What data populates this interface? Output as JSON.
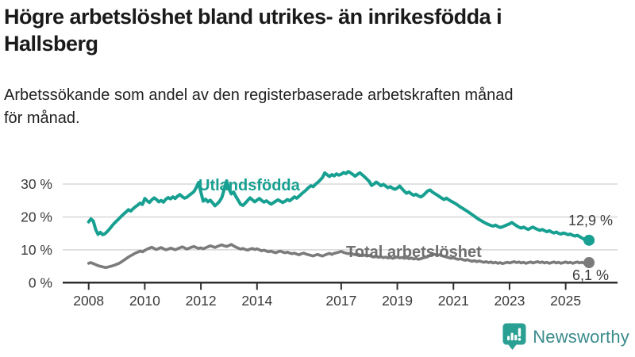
{
  "header": {
    "title_line1": "Högre arbetslöshet bland utrikes- än inrikesfödda i",
    "title_line2": "Hallsberg",
    "subtitle_line1": "Arbetssökande som andel av den registerbaserade arbetskraften månad",
    "subtitle_line2": "för månad."
  },
  "chart_data": {
    "type": "line",
    "title": "Högre arbetslöshet bland utrikes- än inrikesfödda i Hallsberg",
    "subtitle": "Arbetssökande som andel av den registerbaserade arbetskraften månad för månad.",
    "x_start_year": 2008,
    "points_per_year": 12,
    "ylim": [
      0,
      35
    ],
    "grid": "horizontal",
    "legend_position": "inline-labels",
    "y_ticks": {
      "values": [
        0,
        10,
        20,
        30
      ],
      "labels": [
        "0 %",
        "10 %",
        "20 %",
        "30 %"
      ]
    },
    "x_ticks": {
      "years": [
        2008,
        2010,
        2012,
        2014,
        2017,
        2019,
        2021,
        2023,
        2025
      ],
      "labels": [
        "2008",
        "2010",
        "2012",
        "2014",
        "2017",
        "2019",
        "2021",
        "2023",
        "2025"
      ]
    },
    "series": [
      {
        "name": "Utlandsfödda",
        "color": "#17a091",
        "end_label": "12,9 %",
        "end_value": 12.9,
        "values": [
          18.5,
          19.4,
          18.7,
          16.2,
          14.7,
          15.3,
          14.6,
          14.9,
          15.6,
          16.4,
          17.3,
          18.1,
          18.8,
          19.5,
          20.2,
          20.9,
          21.5,
          22.2,
          21.8,
          22.5,
          23.1,
          23.6,
          24.2,
          23.8,
          25.6,
          24.9,
          24.4,
          25.2,
          25.8,
          25.3,
          24.6,
          25.0,
          24.5,
          25.4,
          25.9,
          25.5,
          26.1,
          25.6,
          26.3,
          26.8,
          26.2,
          25.7,
          26.0,
          26.6,
          27.1,
          27.7,
          28.9,
          30.5,
          27.5,
          24.8,
          25.4,
          24.6,
          25.1,
          24.3,
          23.4,
          24.0,
          24.8,
          26.0,
          28.5,
          31.0,
          28.5,
          27.0,
          27.6,
          26.2,
          25.0,
          23.8,
          23.5,
          24.2,
          25.0,
          25.8,
          25.2,
          24.6,
          25.1,
          25.6,
          25.0,
          24.5,
          24.9,
          24.4,
          23.9,
          24.3,
          24.8,
          25.2,
          24.8,
          24.4,
          24.8,
          25.3,
          24.9,
          25.5,
          26.1,
          25.7,
          26.3,
          27.0,
          27.6,
          28.2,
          28.9,
          29.5,
          29.2,
          29.9,
          30.5,
          31.2,
          32.0,
          33.4,
          32.8,
          32.3,
          32.9,
          32.5,
          33.1,
          32.7,
          33.0,
          33.5,
          33.2,
          33.8,
          33.4,
          32.9,
          32.4,
          33.0,
          33.4,
          32.8,
          32.2,
          31.5,
          30.8,
          29.6,
          30.0,
          30.6,
          30.1,
          29.5,
          29.9,
          29.4,
          28.9,
          29.2,
          28.7,
          28.4,
          28.8,
          29.4,
          28.6,
          27.8,
          27.2,
          27.6,
          27.0,
          26.6,
          26.9,
          26.4,
          26.1,
          26.5,
          27.2,
          27.9,
          28.2,
          27.6,
          27.1,
          26.7,
          26.2,
          25.7,
          25.3,
          25.7,
          25.2,
          24.8,
          24.4,
          24.0,
          23.5,
          23.0,
          22.6,
          22.1,
          21.7,
          21.2,
          20.7,
          20.2,
          19.7,
          19.2,
          18.8,
          18.4,
          18.0,
          17.7,
          17.4,
          17.2,
          17.5,
          17.1,
          16.8,
          17.0,
          17.3,
          17.6,
          17.9,
          18.3,
          17.8,
          17.3,
          16.9,
          16.6,
          16.9,
          16.5,
          16.2,
          16.6,
          16.9,
          16.5,
          16.2,
          15.9,
          16.2,
          15.8,
          15.5,
          15.8,
          15.4,
          15.1,
          15.4,
          15.0,
          14.8,
          15.1,
          14.9,
          14.6,
          14.8,
          14.4,
          14.2,
          14.4,
          14.0,
          13.6,
          13.1,
          12.7,
          12.9
        ]
      },
      {
        "name": "Total arbetslöshet",
        "color": "#7b7b7b",
        "end_label": "6,1 %",
        "end_value": 6.1,
        "values": [
          5.9,
          6.1,
          5.8,
          5.5,
          5.2,
          5.0,
          4.8,
          4.6,
          4.7,
          4.9,
          5.1,
          5.3,
          5.6,
          5.9,
          6.3,
          6.8,
          7.3,
          7.8,
          8.2,
          8.6,
          9.0,
          9.3,
          9.6,
          9.4,
          9.8,
          10.2,
          10.5,
          10.8,
          10.4,
          10.1,
          10.4,
          10.7,
          10.3,
          10.0,
          10.2,
          10.5,
          10.3,
          10.0,
          10.3,
          10.6,
          10.9,
          10.6,
          10.2,
          10.5,
          10.8,
          11.0,
          10.7,
          10.4,
          10.6,
          10.3,
          10.6,
          10.9,
          11.2,
          11.0,
          10.7,
          11.0,
          11.3,
          11.5,
          11.2,
          11.0,
          11.3,
          11.6,
          11.2,
          10.8,
          10.5,
          10.2,
          10.4,
          10.1,
          9.9,
          10.2,
          10.4,
          10.1,
          10.3,
          10.0,
          9.7,
          9.9,
          9.6,
          9.4,
          9.6,
          9.3,
          9.1,
          9.4,
          9.6,
          9.3,
          9.1,
          9.3,
          9.0,
          8.8,
          9.0,
          8.7,
          8.5,
          8.8,
          9.0,
          8.7,
          8.5,
          8.3,
          8.1,
          8.4,
          8.6,
          8.3,
          8.1,
          8.4,
          8.7,
          8.9,
          8.6,
          8.9,
          9.1,
          9.3,
          9.5,
          9.2,
          9.0,
          8.8,
          9.0,
          8.7,
          8.5,
          8.7,
          8.4,
          8.2,
          8.4,
          8.1,
          8.3,
          8.0,
          7.8,
          8.0,
          7.7,
          7.9,
          7.6,
          7.8,
          7.5,
          7.7,
          7.4,
          7.6,
          7.8,
          7.5,
          7.7,
          7.4,
          7.6,
          7.3,
          7.5,
          7.2,
          7.4,
          7.1,
          7.3,
          7.5,
          7.7,
          7.9,
          8.4,
          8.8,
          8.6,
          8.3,
          8.5,
          8.2,
          8.0,
          7.8,
          7.6,
          7.4,
          7.6,
          7.3,
          7.1,
          7.3,
          7.0,
          6.8,
          7.0,
          6.7,
          6.5,
          6.7,
          6.4,
          6.6,
          6.4,
          6.2,
          6.4,
          6.1,
          6.3,
          6.0,
          6.2,
          5.9,
          6.1,
          5.8,
          6.0,
          6.2,
          6.0,
          6.2,
          6.4,
          6.1,
          6.3,
          6.0,
          6.2,
          5.9,
          6.1,
          6.3,
          6.0,
          6.2,
          6.4,
          6.1,
          6.3,
          6.0,
          6.2,
          5.9,
          6.1,
          6.3,
          6.0,
          6.2,
          5.9,
          6.1,
          6.3,
          6.0,
          6.2,
          5.9,
          6.1,
          6.3,
          6.0,
          6.2,
          5.9,
          6.0,
          6.1
        ]
      }
    ]
  },
  "footer": {
    "brand": "Newsworthy"
  },
  "colors": {
    "teal_line": "#17a091",
    "gray_line": "#7b7b7b",
    "gray_label": "#6f6f6f",
    "gridline": "#d8d8d8",
    "axis": "#2f2f2f",
    "axis_text": "#3a3a3a",
    "title_text": "#1a1a1a",
    "logo_icon": "#2aa092",
    "logo_text": "#3b8b8d"
  }
}
